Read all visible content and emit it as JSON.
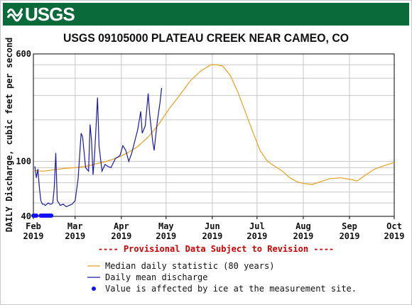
{
  "header": {
    "agency_logo": "USGS"
  },
  "colors": {
    "banner": "#0a6a3a",
    "median": "#e8a020",
    "mean": "#1a1aa8",
    "ice": "#1010ff",
    "provisional": "#cc0000",
    "grid": "#c8c8c8"
  },
  "chart_data": {
    "type": "line",
    "title": "USGS 09105000 PLATEAU CREEK NEAR CAMEO, CO",
    "ylabel": "DAILY Discharge, cubic feet per second",
    "xlabel": "",
    "y_scale": "log",
    "ylim": [
      40,
      600
    ],
    "y_tick_labels": [
      "40",
      "100",
      "600"
    ],
    "grid": true,
    "x_ticks": [
      {
        "label": "Feb\n2019",
        "month": "Feb",
        "year": "2019",
        "date": "2019-02-01"
      },
      {
        "label": "Mar\n2019",
        "month": "Mar",
        "year": "2019",
        "date": "2019-03-01"
      },
      {
        "label": "Apr\n2019",
        "month": "Apr",
        "year": "2019",
        "date": "2019-04-01"
      },
      {
        "label": "May\n2019",
        "month": "May",
        "year": "2019",
        "date": "2019-05-01"
      },
      {
        "label": "Jun\n2019",
        "month": "Jun",
        "year": "2019",
        "date": "2019-06-01"
      },
      {
        "label": "Jul\n2019",
        "month": "Jul",
        "year": "2019",
        "date": "2019-07-01"
      },
      {
        "label": "Aug\n2019",
        "month": "Aug",
        "year": "2019",
        "date": "2019-08-01"
      },
      {
        "label": "Sep\n2019",
        "month": "Sep",
        "year": "2019",
        "date": "2019-09-01"
      },
      {
        "label": "Oct\n2019",
        "month": "Oct",
        "year": "2019",
        "date": "2019-10-01"
      }
    ],
    "xlim": [
      "2019-02-01",
      "2019-10-01"
    ],
    "annotation": "---- Provisional Data Subject to Revision ----",
    "series": [
      {
        "name": "Median daily statistic (80 years)",
        "color": "#e8a020",
        "points": [
          [
            "2019-02-01",
            86
          ],
          [
            "2019-02-08",
            85
          ],
          [
            "2019-02-15",
            87
          ],
          [
            "2019-02-22",
            89
          ],
          [
            "2019-03-01",
            90
          ],
          [
            "2019-03-08",
            92
          ],
          [
            "2019-03-15",
            96
          ],
          [
            "2019-03-22",
            100
          ],
          [
            "2019-03-29",
            106
          ],
          [
            "2019-04-05",
            115
          ],
          [
            "2019-04-12",
            128
          ],
          [
            "2019-04-19",
            150
          ],
          [
            "2019-04-26",
            185
          ],
          [
            "2019-05-03",
            240
          ],
          [
            "2019-05-10",
            300
          ],
          [
            "2019-05-17",
            380
          ],
          [
            "2019-05-24",
            450
          ],
          [
            "2019-05-31",
            500
          ],
          [
            "2019-06-04",
            500
          ],
          [
            "2019-06-08",
            490
          ],
          [
            "2019-06-13",
            420
          ],
          [
            "2019-06-18",
            320
          ],
          [
            "2019-06-23",
            230
          ],
          [
            "2019-06-28",
            165
          ],
          [
            "2019-07-03",
            120
          ],
          [
            "2019-07-08",
            100
          ],
          [
            "2019-07-13",
            92
          ],
          [
            "2019-07-18",
            85
          ],
          [
            "2019-07-23",
            76
          ],
          [
            "2019-07-28",
            71
          ],
          [
            "2019-08-02",
            69
          ],
          [
            "2019-08-07",
            68
          ],
          [
            "2019-08-12",
            71
          ],
          [
            "2019-08-19",
            75
          ],
          [
            "2019-08-26",
            76
          ],
          [
            "2019-09-02",
            74
          ],
          [
            "2019-09-06",
            72
          ],
          [
            "2019-09-12",
            80
          ],
          [
            "2019-09-18",
            88
          ],
          [
            "2019-09-24",
            93
          ],
          [
            "2019-10-01",
            98
          ]
        ]
      },
      {
        "name": "Daily mean discharge",
        "color": "#1a1aa8",
        "points": [
          [
            "2019-02-02",
            92
          ],
          [
            "2019-02-03",
            76
          ],
          [
            "2019-02-04",
            88
          ],
          [
            "2019-02-05",
            65
          ],
          [
            "2019-02-06",
            52
          ],
          [
            "2019-02-07",
            49
          ],
          [
            "2019-02-08",
            49
          ],
          [
            "2019-02-09",
            48
          ],
          [
            "2019-02-10",
            49
          ],
          [
            "2019-02-11",
            50
          ],
          [
            "2019-02-12",
            49
          ],
          [
            "2019-02-13",
            49
          ],
          [
            "2019-02-14",
            50
          ],
          [
            "2019-02-15",
            65
          ],
          [
            "2019-02-16",
            115
          ],
          [
            "2019-02-17",
            52
          ],
          [
            "2019-02-18",
            50
          ],
          [
            "2019-02-19",
            48
          ],
          [
            "2019-02-21",
            49
          ],
          [
            "2019-02-23",
            47
          ],
          [
            "2019-02-25",
            48
          ],
          [
            "2019-02-27",
            49
          ],
          [
            "2019-03-01",
            52
          ],
          [
            "2019-03-03",
            75
          ],
          [
            "2019-03-05",
            160
          ],
          [
            "2019-03-06",
            150
          ],
          [
            "2019-03-08",
            90
          ],
          [
            "2019-03-10",
            85
          ],
          [
            "2019-03-11",
            185
          ],
          [
            "2019-03-12",
            140
          ],
          [
            "2019-03-13",
            80
          ],
          [
            "2019-03-14",
            110
          ],
          [
            "2019-03-16",
            290
          ],
          [
            "2019-03-17",
            130
          ],
          [
            "2019-03-19",
            85
          ],
          [
            "2019-03-21",
            95
          ],
          [
            "2019-03-23",
            92
          ],
          [
            "2019-03-25",
            90
          ],
          [
            "2019-03-28",
            105
          ],
          [
            "2019-03-31",
            110
          ],
          [
            "2019-04-02",
            130
          ],
          [
            "2019-04-04",
            120
          ],
          [
            "2019-04-06",
            100
          ],
          [
            "2019-04-08",
            115
          ],
          [
            "2019-04-10",
            140
          ],
          [
            "2019-04-12",
            170
          ],
          [
            "2019-04-14",
            230
          ],
          [
            "2019-04-15",
            160
          ],
          [
            "2019-04-17",
            180
          ],
          [
            "2019-04-19",
            310
          ],
          [
            "2019-04-20",
            220
          ],
          [
            "2019-04-22",
            140
          ],
          [
            "2019-04-23",
            120
          ],
          [
            "2019-04-25",
            190
          ],
          [
            "2019-04-27",
            270
          ],
          [
            "2019-04-28",
            340
          ]
        ]
      }
    ],
    "ice_affected_dates": [
      "2019-02-01",
      "2019-02-02",
      "2019-02-03",
      "2019-02-06",
      "2019-02-07",
      "2019-02-08",
      "2019-02-09",
      "2019-02-10",
      "2019-02-11",
      "2019-02-12",
      "2019-02-13"
    ],
    "ice_value": 40,
    "legend": [
      {
        "label": "Median daily statistic (80 years)",
        "marker": "line",
        "color": "#e8a020"
      },
      {
        "label": "Daily mean discharge",
        "marker": "line",
        "color": "#1a1aa8"
      },
      {
        "label": "Value is affected by ice at the measurement site.",
        "marker": "dot",
        "color": "#1010ff"
      }
    ],
    "legend_position": "bottom"
  }
}
